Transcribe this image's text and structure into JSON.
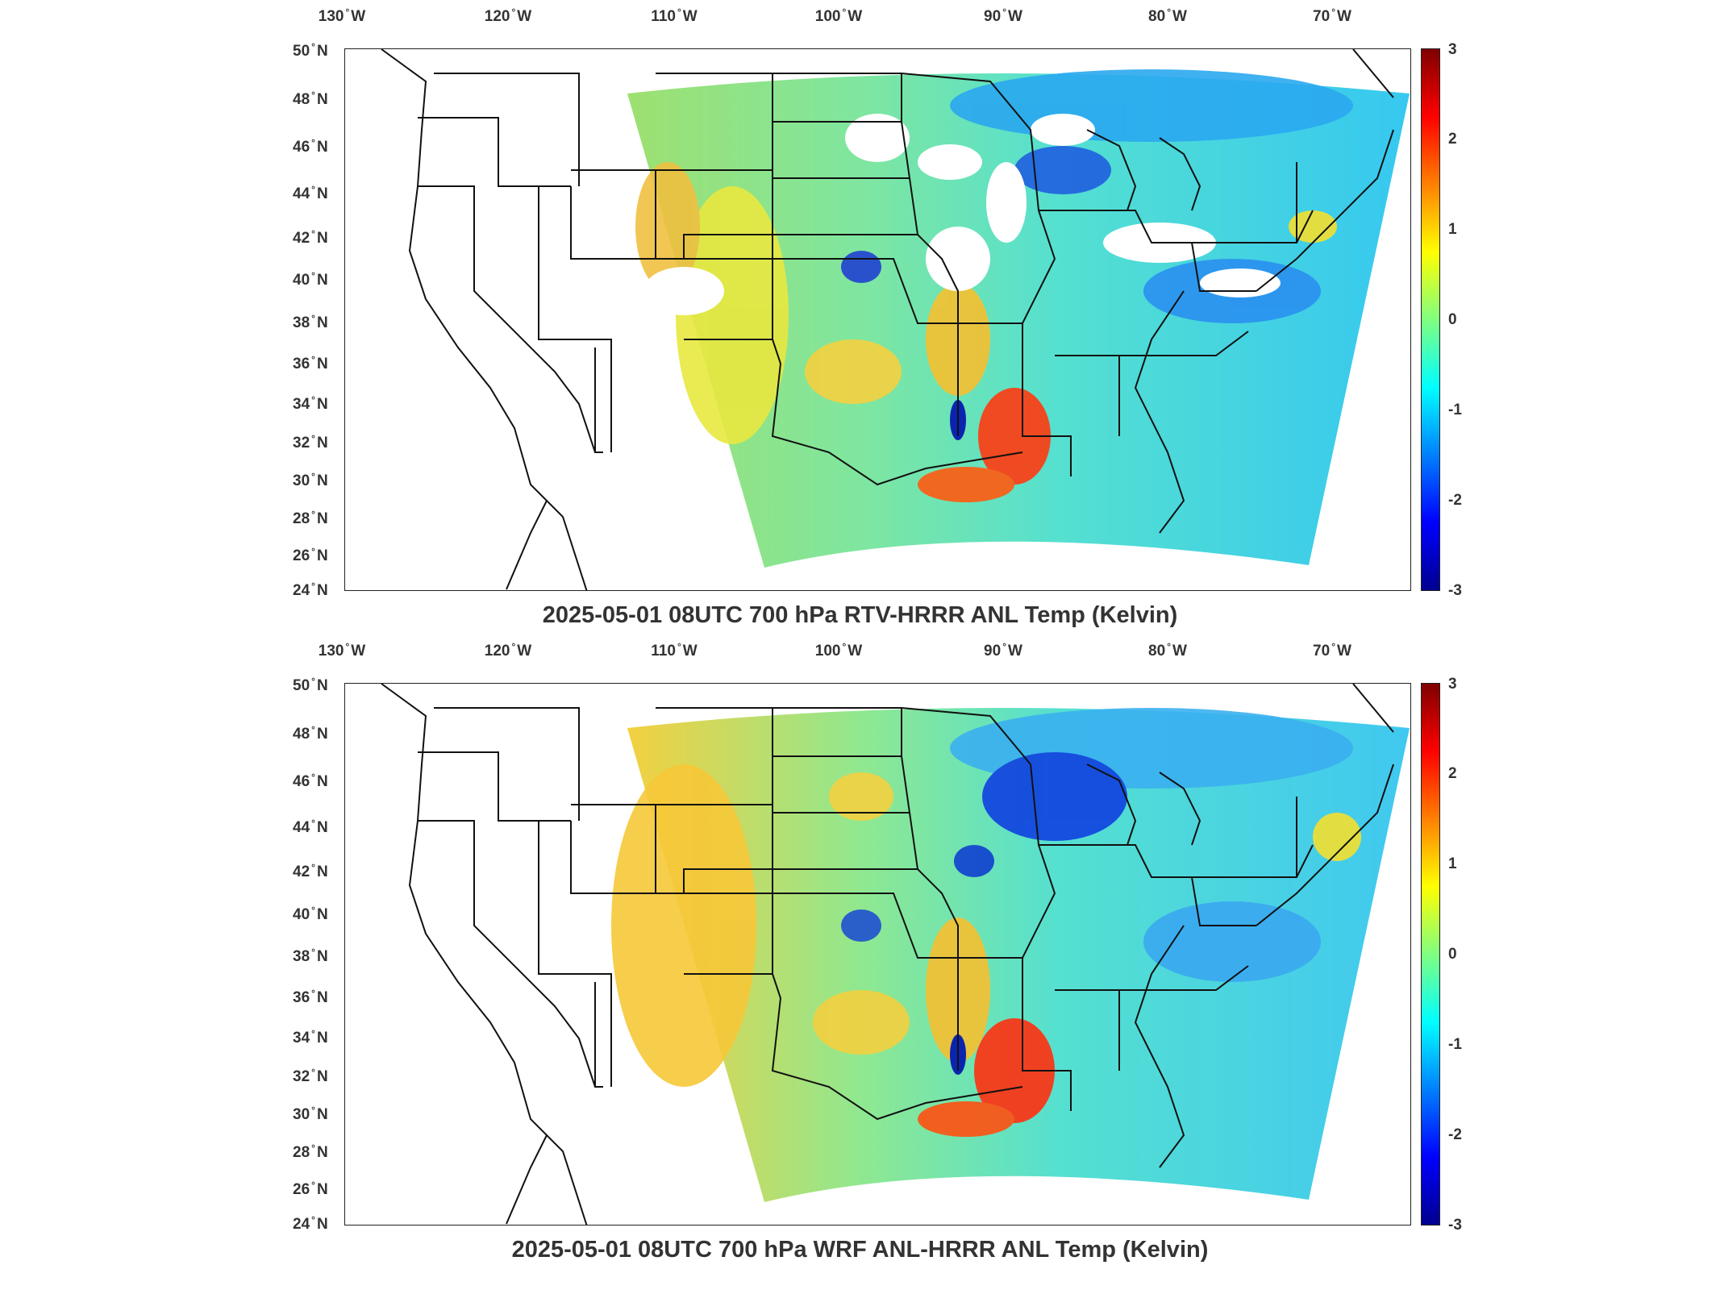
{
  "panels": [
    {
      "title": "2025-05-01 08UTC 700 hPa RTV-HRRR ANL Temp (Kelvin)",
      "colorbar_ticks": [
        "3",
        "2",
        "1",
        "0",
        "-1",
        "-2",
        "-3"
      ]
    },
    {
      "title": "2025-05-01 08UTC 700 hPa WRF ANL-HRRR ANL Temp (Kelvin)",
      "colorbar_ticks": [
        "3",
        "2",
        "1",
        "0",
        "-1",
        "-2",
        "-3"
      ]
    }
  ],
  "lon_labels": [
    {
      "deg": "130",
      "dir": "W"
    },
    {
      "deg": "120",
      "dir": "W"
    },
    {
      "deg": "110",
      "dir": "W"
    },
    {
      "deg": "100",
      "dir": "W"
    },
    {
      "deg": "90",
      "dir": "W"
    },
    {
      "deg": "80",
      "dir": "W"
    },
    {
      "deg": "70",
      "dir": "W"
    }
  ],
  "lat_labels": [
    {
      "deg": "50",
      "dir": "N"
    },
    {
      "deg": "48",
      "dir": "N"
    },
    {
      "deg": "46",
      "dir": "N"
    },
    {
      "deg": "44",
      "dir": "N"
    },
    {
      "deg": "42",
      "dir": "N"
    },
    {
      "deg": "40",
      "dir": "N"
    },
    {
      "deg": "38",
      "dir": "N"
    },
    {
      "deg": "36",
      "dir": "N"
    },
    {
      "deg": "34",
      "dir": "N"
    },
    {
      "deg": "32",
      "dir": "N"
    },
    {
      "deg": "30",
      "dir": "N"
    },
    {
      "deg": "28",
      "dir": "N"
    },
    {
      "deg": "26",
      "dir": "N"
    },
    {
      "deg": "24",
      "dir": "N"
    }
  ],
  "colorbar": {
    "min": -3,
    "max": 3,
    "colors": [
      "#00008f",
      "#0000ff",
      "#0080ff",
      "#00ffff",
      "#80ff80",
      "#ffff00",
      "#ff8000",
      "#ff0000",
      "#800000"
    ]
  }
}
